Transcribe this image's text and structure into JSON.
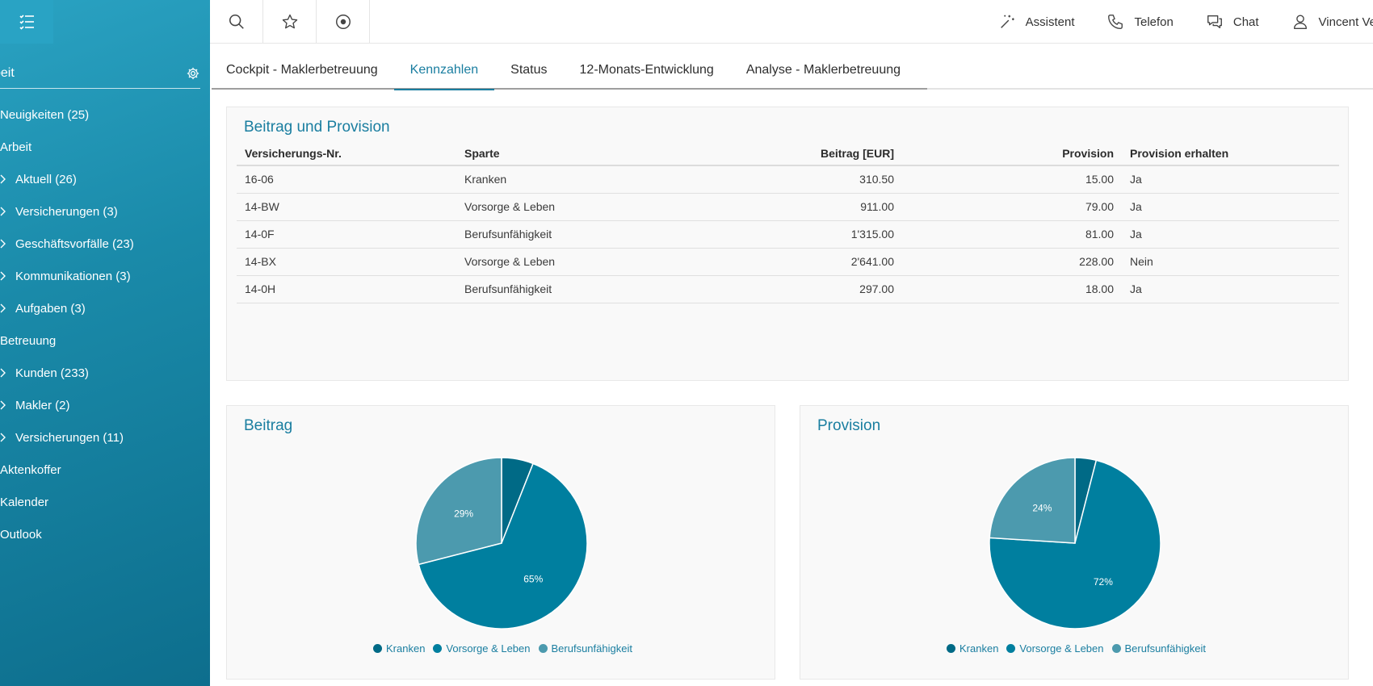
{
  "colors": {
    "accent": "#1a7ea0",
    "dark_teal": "#006a86",
    "mid_teal": "#007f9f",
    "light_teal": "#4c9aae"
  },
  "sidebar": {
    "title": "beit",
    "items": [
      {
        "label": "Neuigkeiten (25)",
        "child": false
      },
      {
        "label": "Arbeit",
        "child": false
      },
      {
        "label": "Aktuell (26)",
        "child": true
      },
      {
        "label": "Versicherungen (3)",
        "child": true
      },
      {
        "label": "Geschäftsvorfälle (23)",
        "child": true
      },
      {
        "label": "Kommunikationen (3)",
        "child": true
      },
      {
        "label": "Aufgaben (3)",
        "child": true
      },
      {
        "label": "Betreuung",
        "child": false
      },
      {
        "label": "Kunden (233)",
        "child": true
      },
      {
        "label": "Makler (2)",
        "child": true
      },
      {
        "label": "Versicherungen (11)",
        "child": true
      },
      {
        "label": "Aktenkoffer",
        "child": false
      },
      {
        "label": "Kalender",
        "child": false
      },
      {
        "label": "Outlook",
        "child": false
      }
    ]
  },
  "topbar": {
    "assistant": "Assistent",
    "phone": "Telefon",
    "chat": "Chat",
    "user": "Vincent Ve"
  },
  "tabs": [
    {
      "label": "Cockpit - Maklerbetreuung",
      "active": false
    },
    {
      "label": "Kennzahlen",
      "active": true
    },
    {
      "label": "Status",
      "active": false
    },
    {
      "label": "12-Monats-Entwicklung",
      "active": false
    },
    {
      "label": "Analyse - Maklerbetreuung",
      "active": false
    }
  ],
  "table_panel": {
    "title": "Beitrag und Provision",
    "headers": [
      "Versicherungs-Nr.",
      "Sparte",
      "Beitrag [EUR]",
      "Provision",
      "Provision erhalten"
    ],
    "rows": [
      [
        "16-06",
        "Kranken",
        "310.50",
        "15.00",
        "Ja"
      ],
      [
        "14-BW",
        "Vorsorge & Leben",
        "911.00",
        "79.00",
        "Ja"
      ],
      [
        "14-0F",
        "Berufsunfähigkeit",
        "1'315.00",
        "81.00",
        "Ja"
      ],
      [
        "14-BX",
        "Vorsorge & Leben",
        "2'641.00",
        "228.00",
        "Nein"
      ],
      [
        "14-0H",
        "Berufsunfähigkeit",
        "297.00",
        "18.00",
        "Ja"
      ]
    ]
  },
  "chart_data": [
    {
      "type": "pie",
      "title": "Beitrag",
      "labels": [
        "Kranken",
        "Vorsorge & Leben",
        "Berufsunfähigkeit"
      ],
      "values": [
        6,
        65,
        29
      ],
      "slice_labels": [
        "",
        "65%",
        "29%"
      ],
      "colors": [
        "#006a86",
        "#007f9f",
        "#4c9aae"
      ],
      "legend": "bottom"
    },
    {
      "type": "pie",
      "title": "Provision",
      "labels": [
        "Kranken",
        "Vorsorge & Leben",
        "Berufsunfähigkeit"
      ],
      "values": [
        4,
        72,
        24
      ],
      "slice_labels": [
        "",
        "72%",
        "24%"
      ],
      "colors": [
        "#006a86",
        "#007f9f",
        "#4c9aae"
      ],
      "legend": "bottom"
    }
  ]
}
